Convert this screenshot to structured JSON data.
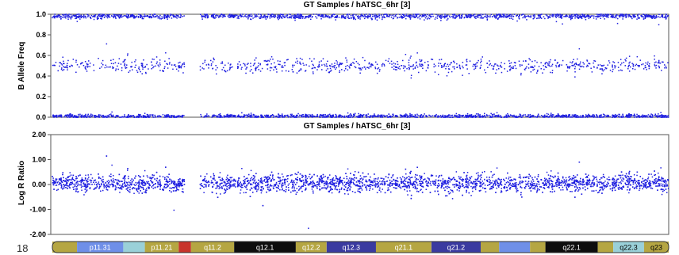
{
  "chart_data": [
    {
      "type": "scatter",
      "title": "GT Samples / hATSC_6hr [3]",
      "ylabel": "B Allele Freq",
      "ylim": [
        0,
        1
      ],
      "yticks": [
        "1.0",
        "0.8",
        "0.6",
        "0.4",
        "0.2",
        "0.0"
      ],
      "grid": false,
      "marker_color": "#1f1fe0",
      "point_clusters": [
        {
          "y": 0.98,
          "spread": 0.012,
          "density": 1.0
        },
        {
          "y": 0.5,
          "spread": 0.035,
          "density": 0.6
        },
        {
          "y": 0.01,
          "spread": 0.01,
          "density": 1.0
        }
      ],
      "gap_x_range": [
        0.215,
        0.24
      ]
    },
    {
      "type": "scatter",
      "title": "GT Samples / hATSC_6hr [3]",
      "ylabel": "Log R Ratio",
      "ylim": [
        -2,
        2
      ],
      "yticks": [
        "2.00",
        "1.00",
        "0.00",
        "-1.00",
        "-2.00"
      ],
      "grid": false,
      "marker_color": "#1f1fe0",
      "point_clusters": [
        {
          "y": 0.05,
          "spread": 0.18,
          "density": 1.0
        }
      ],
      "gap_x_range": [
        0.215,
        0.24
      ]
    }
  ],
  "ideogram": {
    "chromosome": "18",
    "bands": [
      {
        "label": "",
        "from": 0.0,
        "to": 0.04,
        "color": "#b5a642",
        "text_color": "#ffffff"
      },
      {
        "label": "p11.31",
        "from": 0.04,
        "to": 0.115,
        "color": "#6f8fe8",
        "text_color": "#ffffff"
      },
      {
        "label": "",
        "from": 0.115,
        "to": 0.15,
        "color": "#9ad0d8",
        "text_color": "#000000"
      },
      {
        "label": "p11.21",
        "from": 0.15,
        "to": 0.205,
        "color": "#b5a642",
        "text_color": "#ffffff"
      },
      {
        "label": "",
        "from": 0.205,
        "to": 0.225,
        "color": "#c8342b",
        "text_color": "#ffffff"
      },
      {
        "label": "q11.2",
        "from": 0.225,
        "to": 0.295,
        "color": "#b5a642",
        "text_color": "#ffffff"
      },
      {
        "label": "q12.1",
        "from": 0.295,
        "to": 0.395,
        "color": "#0d0d0d",
        "text_color": "#ffffff"
      },
      {
        "label": "q12.2",
        "from": 0.395,
        "to": 0.445,
        "color": "#b5a642",
        "text_color": "#ffffff"
      },
      {
        "label": "q12.3",
        "from": 0.445,
        "to": 0.525,
        "color": "#3a3aa0",
        "text_color": "#ffffff"
      },
      {
        "label": "q21.1",
        "from": 0.525,
        "to": 0.615,
        "color": "#b5a642",
        "text_color": "#ffffff"
      },
      {
        "label": "q21.2",
        "from": 0.615,
        "to": 0.695,
        "color": "#3a3aa0",
        "text_color": "#ffffff"
      },
      {
        "label": "",
        "from": 0.695,
        "to": 0.725,
        "color": "#b5a642",
        "text_color": "#ffffff"
      },
      {
        "label": "",
        "from": 0.725,
        "to": 0.775,
        "color": "#6f8fe8",
        "text_color": "#ffffff"
      },
      {
        "label": "",
        "from": 0.775,
        "to": 0.8,
        "color": "#b5a642",
        "text_color": "#ffffff"
      },
      {
        "label": "q22.1",
        "from": 0.8,
        "to": 0.885,
        "color": "#0d0d0d",
        "text_color": "#ffffff"
      },
      {
        "label": "",
        "from": 0.885,
        "to": 0.91,
        "color": "#b5a642",
        "text_color": "#ffffff"
      },
      {
        "label": "q22.3",
        "from": 0.91,
        "to": 0.96,
        "color": "#9ad0d8",
        "text_color": "#000000"
      },
      {
        "label": "q23",
        "from": 0.96,
        "to": 1.0,
        "color": "#b5a642",
        "text_color": "#000000"
      }
    ]
  }
}
